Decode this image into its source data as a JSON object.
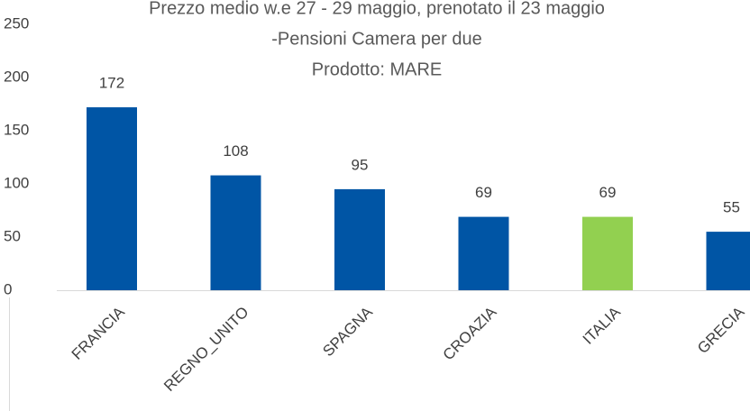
{
  "chart_data": {
    "type": "bar",
    "title_lines": [
      "Prezzo medio w.e 27 - 29 maggio, prenotato il 23 maggio",
      "-Pensioni Camera per due",
      "Prodotto: MARE"
    ],
    "categories": [
      "FRANCIA",
      "REGNO_UNITO",
      "SPAGNA",
      "CROAZIA",
      "ITALIA",
      "GRECIA"
    ],
    "values": [
      172,
      108,
      95,
      69,
      69,
      55
    ],
    "colors": [
      "#0055a5",
      "#0055a5",
      "#0055a5",
      "#0055a5",
      "#92d050",
      "#0055a5"
    ],
    "ylim": [
      0,
      250
    ],
    "yticks": [
      0,
      50,
      100,
      150,
      200,
      250
    ],
    "grid": false
  }
}
